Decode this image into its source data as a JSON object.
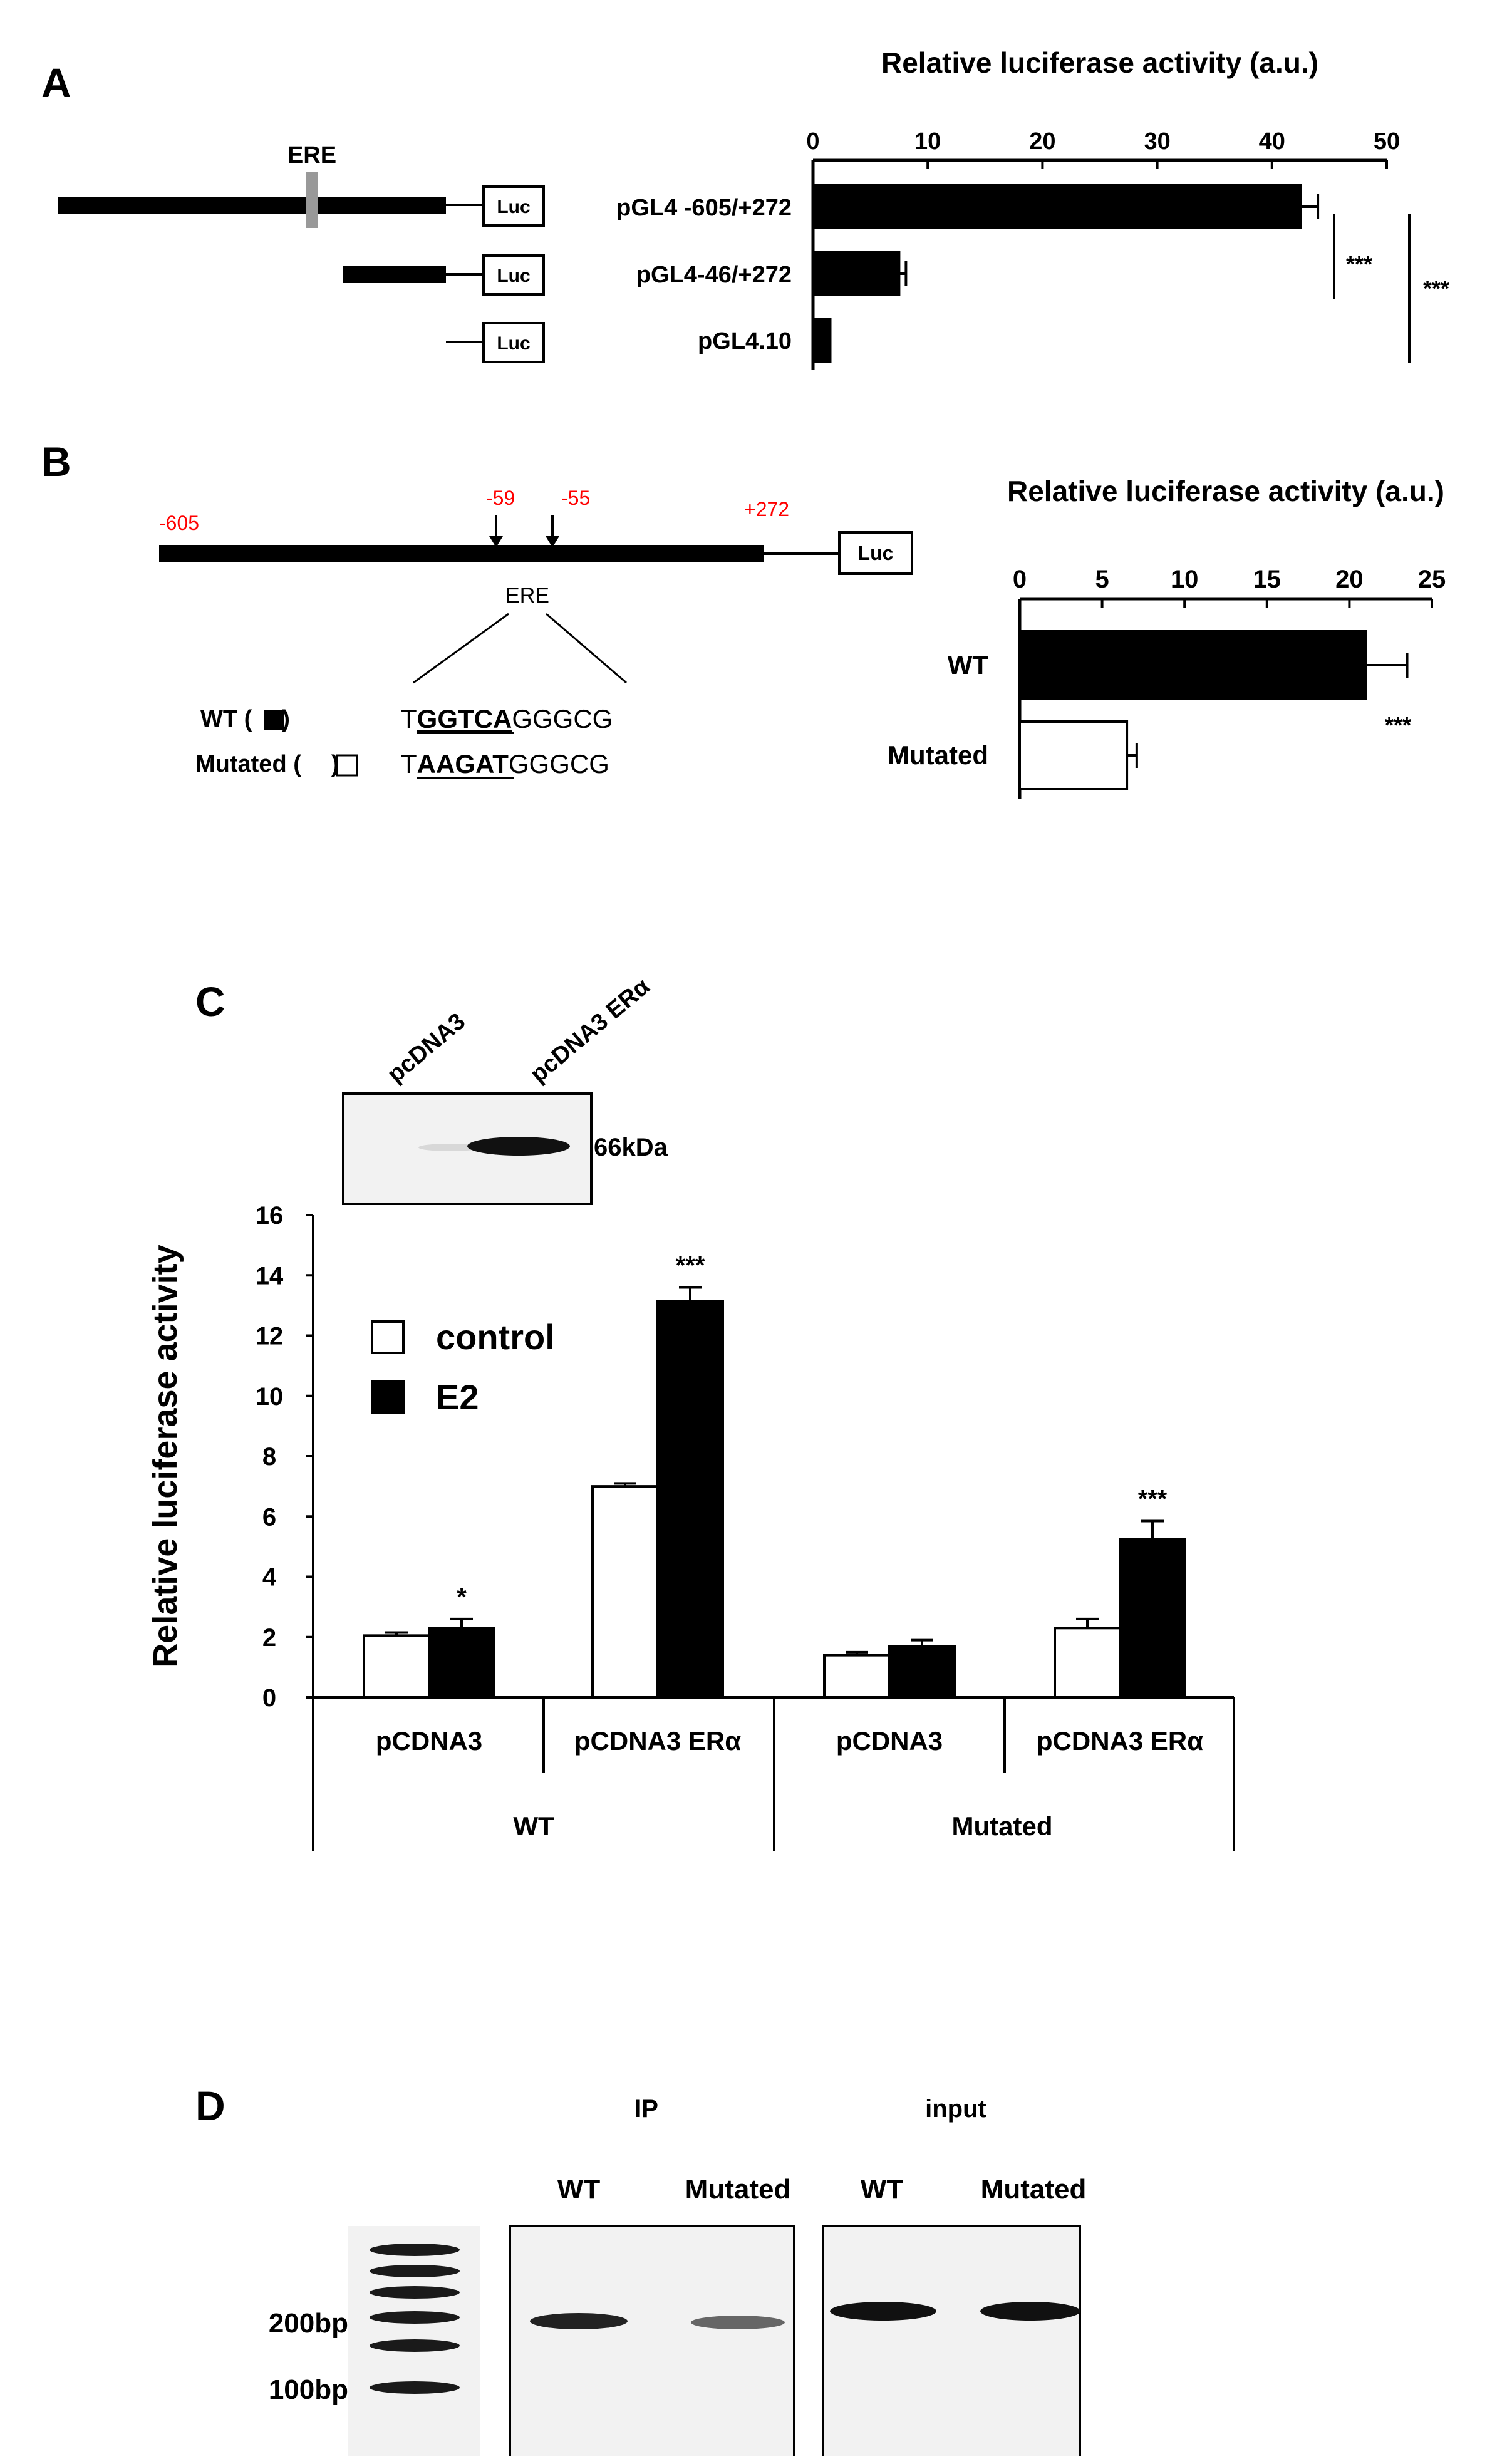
{
  "panel_letters": {
    "a": "A",
    "b": "B",
    "c": "C",
    "d": "D"
  },
  "panel_a": {
    "ere_label": "ERE",
    "luc_label": "Luc",
    "constructs": [
      "pGL4 -605/+272",
      "pGL4-46/+272",
      "pGL4.10"
    ],
    "sig_marks": [
      "***",
      "***"
    ]
  },
  "panel_b": {
    "positions": {
      "p605": "-605",
      "p59": "-59",
      "p55": "-55",
      "p272": "+272"
    },
    "luc_label": "Luc",
    "ere_label": "ERE",
    "wt_label": "WT (",
    "wt_label_end": ")",
    "mut_label": "Mutated (",
    "mut_label_end": ")",
    "wt_seq": {
      "pre": "T",
      "core": "GGTCA",
      "post": "GGGCG"
    },
    "mut_seq": {
      "pre": "T",
      "core": "AAGAT",
      "post": "GGGCG"
    },
    "sig_mark": "***"
  },
  "panel_c": {
    "blot_lanes": [
      "pcDNA3",
      "pcDNA3 ERα"
    ],
    "blot_size": "66kDa",
    "sig_marks": [
      "*",
      "***",
      "***"
    ],
    "group_labels": [
      "WT",
      "Mutated"
    ]
  },
  "panel_d": {
    "ip_label": "IP",
    "input_label": "input",
    "lanes": [
      "WT",
      "Mutated",
      "WT",
      "Mutated"
    ],
    "ladder_labels": [
      "200bp",
      "100bp"
    ]
  },
  "colors": {
    "bar_dark": "#000000",
    "bar_light": "#ffffff",
    "annotation_red": "#ff0000",
    "ere_box": "#999999"
  },
  "chart_data": [
    {
      "type": "bar",
      "orientation": "horizontal",
      "title": "Relative luciferase activity (a.u.)",
      "categories": [
        "pGL4 -605/+272",
        "pGL4-46/+272",
        "pGL4.10"
      ],
      "values": [
        42.5,
        7.5,
        1.5
      ],
      "errors": [
        1.5,
        0.6,
        0.0
      ],
      "xlim": [
        0,
        50
      ],
      "ticks": [
        0,
        10,
        20,
        30,
        40,
        50
      ]
    },
    {
      "type": "bar",
      "orientation": "horizontal",
      "title": "Relative luciferase activity (a.u.)",
      "categories": [
        "WT",
        "Mutated"
      ],
      "values": [
        21,
        6.5
      ],
      "errors": [
        2.5,
        0.6
      ],
      "xlim": [
        0,
        25
      ],
      "ticks": [
        0,
        5,
        10,
        15,
        20,
        25
      ]
    },
    {
      "type": "bar",
      "ylabel": "Relative luciferase activity",
      "ylim": [
        0,
        16
      ],
      "ticks": [
        0,
        2,
        4,
        6,
        8,
        10,
        12,
        14,
        16
      ],
      "categories": [
        "pCDNA3",
        "pCDNA3 ERα",
        "pCDNA3",
        "pCDNA3 ERα"
      ],
      "groups": [
        "WT",
        "WT",
        "Mutated",
        "Mutated"
      ],
      "series": [
        {
          "name": "control",
          "values": [
            2.05,
            7.0,
            1.4,
            2.3
          ],
          "errors": [
            0.1,
            0.1,
            0.1,
            0.3
          ]
        },
        {
          "name": "E2",
          "values": [
            2.3,
            13.15,
            1.7,
            5.25
          ],
          "errors": [
            0.3,
            0.45,
            0.2,
            0.6
          ]
        }
      ],
      "legend": "upper-left"
    }
  ]
}
